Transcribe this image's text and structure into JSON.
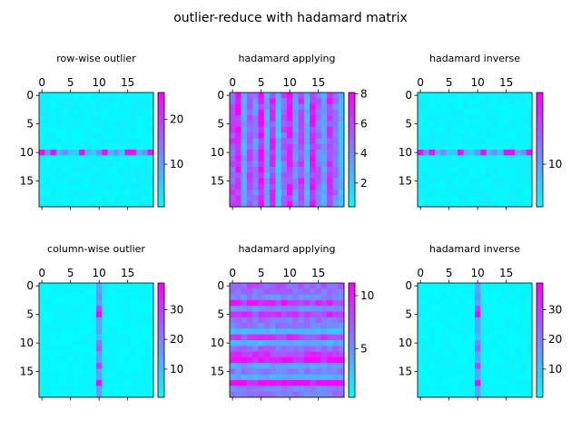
{
  "figure": {
    "suptitle": "outlier-reduce with hadamard matrix",
    "colormap": "cool",
    "colormap_stops": [
      "#00ffff",
      "#ff00ff"
    ]
  },
  "chart_data": [
    {
      "type": "heatmap",
      "title": "row-wise outlier",
      "rows": 20,
      "cols": 20,
      "xticks": [
        "0",
        "5",
        "10",
        "15"
      ],
      "yticks": [
        "0",
        "5",
        "10",
        "15"
      ],
      "vmin": 0.5,
      "vmax": 26,
      "colorbar_ticks": [
        "10",
        "20"
      ],
      "colorbar_tick_values": [
        10,
        20
      ],
      "pattern": "row-outlier",
      "outlier_index": 10,
      "base_level": 1.5,
      "outlier_levels": [
        25,
        12,
        25,
        8,
        12,
        6,
        6,
        25,
        8,
        6,
        12,
        25,
        8,
        12,
        6,
        25,
        25,
        8,
        12,
        25
      ]
    },
    {
      "type": "heatmap",
      "title": "hadamard applying",
      "rows": 20,
      "cols": 20,
      "xticks": [
        "0",
        "5",
        "10",
        "15"
      ],
      "yticks": [
        "0",
        "5",
        "10",
        "15"
      ],
      "vmin": 0.4,
      "vmax": 8.1,
      "colorbar_ticks": [
        "2",
        "4",
        "6",
        "8"
      ],
      "colorbar_tick_values": [
        2,
        4,
        6,
        8
      ],
      "pattern": "column-stripes",
      "stripe_levels": [
        5.6,
        7.2,
        2.8,
        6.1,
        4.0,
        7.6,
        3.1,
        6.4,
        2.2,
        5.3,
        7.0,
        3.6,
        6.0,
        2.6,
        7.4,
        4.6,
        3.2,
        6.8,
        4.2,
        2.4
      ]
    },
    {
      "type": "heatmap",
      "title": "hadamard inverse",
      "rows": 20,
      "cols": 20,
      "xticks": [
        "0",
        "5",
        "10",
        "15"
      ],
      "yticks": [
        "0",
        "5",
        "10",
        "15"
      ],
      "vmin": 0.5,
      "vmax": 26,
      "colorbar_ticks": [
        "10"
      ],
      "colorbar_tick_values": [
        10
      ],
      "pattern": "row-outlier",
      "outlier_index": 10,
      "base_level": 1.5,
      "outlier_levels": [
        25,
        12,
        25,
        8,
        12,
        6,
        6,
        25,
        8,
        6,
        12,
        25,
        8,
        12,
        6,
        25,
        25,
        8,
        12,
        25
      ]
    },
    {
      "type": "heatmap",
      "title": "column-wise outlier",
      "rows": 20,
      "cols": 20,
      "xticks": [
        "0",
        "5",
        "10",
        "15"
      ],
      "yticks": [
        "0",
        "5",
        "10",
        "15"
      ],
      "vmin": 0.5,
      "vmax": 39,
      "colorbar_ticks": [
        "10",
        "20",
        "30"
      ],
      "colorbar_tick_values": [
        10,
        20,
        30
      ],
      "pattern": "column-outlier",
      "outlier_index": 10,
      "base_level": 1.5,
      "outlier_levels": [
        15,
        15,
        18,
        15,
        30,
        38,
        15,
        15,
        15,
        10,
        20,
        25,
        15,
        15,
        30,
        15,
        15,
        38,
        15,
        15
      ]
    },
    {
      "type": "heatmap",
      "title": "hadamard applying",
      "rows": 20,
      "cols": 20,
      "xticks": [
        "0",
        "5",
        "10",
        "15"
      ],
      "yticks": [
        "0",
        "5",
        "10",
        "15"
      ],
      "vmin": 0.4,
      "vmax": 11.2,
      "colorbar_ticks": [
        "5",
        "10"
      ],
      "colorbar_tick_values": [
        5,
        10
      ],
      "pattern": "row-stripes",
      "stripe_levels": [
        7.2,
        6.6,
        5.4,
        9.2,
        5.0,
        8.8,
        6.4,
        6.0,
        3.2,
        8.4,
        3.6,
        6.8,
        8.6,
        10.8,
        4.6,
        6.0,
        3.8,
        11.0,
        5.6,
        6.2
      ]
    },
    {
      "type": "heatmap",
      "title": "hadamard inverse",
      "rows": 20,
      "cols": 20,
      "xticks": [
        "0",
        "5",
        "10",
        "15"
      ],
      "yticks": [
        "0",
        "5",
        "10",
        "15"
      ],
      "vmin": 0.5,
      "vmax": 39,
      "colorbar_ticks": [
        "10",
        "20",
        "30"
      ],
      "colorbar_tick_values": [
        10,
        20,
        30
      ],
      "pattern": "column-outlier",
      "outlier_index": 10,
      "base_level": 1.5,
      "outlier_levels": [
        15,
        15,
        18,
        15,
        30,
        38,
        15,
        15,
        15,
        10,
        20,
        25,
        15,
        15,
        30,
        15,
        15,
        38,
        15,
        15
      ]
    }
  ]
}
